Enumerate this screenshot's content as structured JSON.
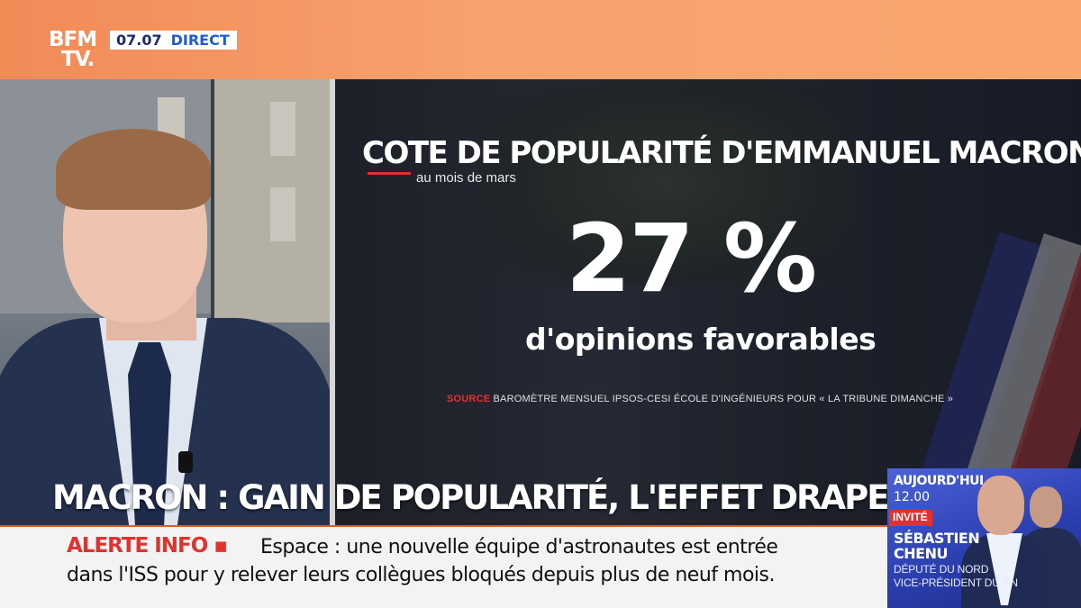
{
  "channel": {
    "logo_line1": "BFM",
    "logo_line2": "TV.",
    "time": "07.07",
    "live_label": "DIRECT"
  },
  "graphic": {
    "title": "COTE DE POPULARITÉ D'EMMANUEL MACRON",
    "subtitle": "au mois de mars",
    "value": "27 %",
    "value_caption": "d'opinions favorables",
    "source_label": "SOURCE",
    "source_text": " BAROMÈTRE MENSUEL IPSOS-CESI ÉCOLE D'INGÉNIEURS POUR « LA TRIBUNE DIMANCHE »"
  },
  "headline": "MACRON : GAIN DE POPULARITÉ, L'EFFET DRAPEAU ?",
  "ticker": {
    "label": "ALERTE INFO ▪",
    "text_line1": "Espace : une nouvelle équipe d'astronautes est entrée",
    "text_line2": "dans l'ISS pour y relever leurs collègues bloqués depuis plus de neuf mois."
  },
  "promo": {
    "when": "AUJOURD'HUI",
    "time": "12.00",
    "invite_label": "INVITÉ",
    "name_first": "SÉBASTIEN",
    "name_last": "CHENU",
    "role_line1": "DÉPUTÉ DU NORD",
    "role_line2": "VICE-PRÉSIDENT DU RN"
  },
  "colors": {
    "accent_orange": "#f28a56",
    "alert_red": "#e2322e",
    "brand_blue": "#1f5bd6"
  }
}
